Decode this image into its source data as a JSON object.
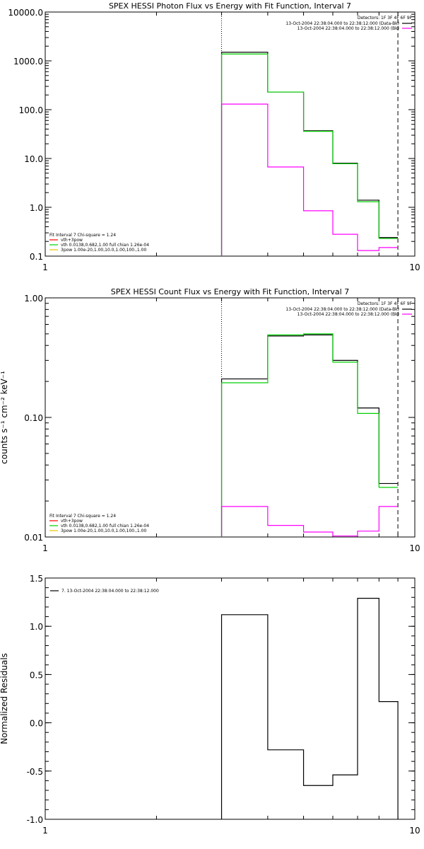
{
  "chart_data": [
    {
      "type": "line",
      "title": "SPEX HESSI Photon Flux vs Energy with Fit Function, Interval 7",
      "xscale": "log",
      "yscale": "log",
      "xlim": [
        1,
        10
      ],
      "ylim": [
        0.1,
        10000
      ],
      "x_ticks": [
        {
          "v": 1,
          "label": "1"
        },
        {
          "v": 10,
          "label": "10"
        }
      ],
      "y_ticks": [
        {
          "v": 0.1,
          "label": "0.1"
        },
        {
          "v": 1,
          "label": "1.0"
        },
        {
          "v": 10,
          "label": "10.0"
        },
        {
          "v": 100,
          "label": "100.0"
        },
        {
          "v": 1000,
          "label": "1000.0"
        },
        {
          "v": 10000,
          "label": "10000.0"
        }
      ],
      "bin_edges": [
        3.0,
        4.0,
        5.0,
        6.0,
        7.0,
        8.0,
        9.0
      ],
      "vlines": [
        {
          "x": 3.0,
          "style": "dotted"
        },
        {
          "x": 9.0,
          "style": "dashed"
        }
      ],
      "series": [
        {
          "color": "#000000",
          "values": [
            1500,
            230,
            37,
            8.0,
            1.4,
            0.24
          ]
        },
        {
          "color": "#00d000",
          "values": [
            1380,
            230,
            36,
            7.8,
            1.3,
            0.23
          ]
        },
        {
          "color": "#ff00ff",
          "values": [
            130,
            6.7,
            0.85,
            0.28,
            0.13,
            0.15
          ]
        }
      ],
      "legend_right": {
        "header": "Detectors: 1F 3F 4F 6F 9F",
        "entries": [
          {
            "text": "13-Oct-2004 22:38:04.000 to 22:38:12.000 (Data-Bk)",
            "color": "#000000"
          },
          {
            "text": "13-Oct-2004 22:38:04.000 to 22:38:12.000 (Bk)",
            "color": "#ff00ff"
          }
        ]
      },
      "legend_left": {
        "header": "Fit Interval 7    Chi-square = 1.24",
        "entries": [
          {
            "text": "vth+3pow",
            "color": "#ff0000"
          },
          {
            "text": "vth 0.0138,0.682,1.00   full chian 1.26e-04",
            "color": "#00d000"
          },
          {
            "text": "3pow 1.00e-20,1.00,10.0,1.00,100.,1.00",
            "color": "#e8c000"
          }
        ]
      }
    },
    {
      "type": "line",
      "title": "SPEX HESSI Count Flux vs Energy with Fit Function, Interval 7",
      "ylabel": "counts s⁻¹ cm⁻² keV⁻¹",
      "xscale": "log",
      "yscale": "log",
      "xlim": [
        1,
        10
      ],
      "ylim": [
        0.01,
        1.0
      ],
      "x_ticks": [
        {
          "v": 1,
          "label": "1"
        },
        {
          "v": 10,
          "label": "10"
        }
      ],
      "y_ticks": [
        {
          "v": 0.01,
          "label": "0.01"
        },
        {
          "v": 0.1,
          "label": "0.10"
        },
        {
          "v": 1,
          "label": "1.00"
        }
      ],
      "bin_edges": [
        3.0,
        4.0,
        5.0,
        6.0,
        7.0,
        8.0,
        9.0
      ],
      "vlines": [
        {
          "x": 3.0,
          "style": "dotted"
        },
        {
          "x": 9.0,
          "style": "dashed"
        }
      ],
      "series": [
        {
          "color": "#000000",
          "values": [
            0.21,
            0.48,
            0.49,
            0.3,
            0.12,
            0.028
          ]
        },
        {
          "color": "#00d000",
          "values": [
            0.195,
            0.49,
            0.5,
            0.29,
            0.108,
            0.026
          ]
        },
        {
          "color": "#ff00ff",
          "values": [
            0.018,
            0.0125,
            0.011,
            0.0102,
            0.0112,
            0.018
          ]
        }
      ],
      "legend_right": {
        "header": "Detectors: 1F 3F 4F 6F 9F",
        "entries": [
          {
            "text": "13-Oct-2004 22:38:04.000 to 22:38:12.000 (Data-Bk)",
            "color": "#000000"
          },
          {
            "text": "13-Oct-2004 22:38:04.000 to 22:38:12.000 (Bk)",
            "color": "#ff00ff"
          }
        ]
      },
      "legend_left": {
        "header": "Fit Interval 7    Chi-square = 1.24",
        "entries": [
          {
            "text": "vth+3pow",
            "color": "#ff0000"
          },
          {
            "text": "vth 0.0138,0.682,1.00   full chian 1.26e-04",
            "color": "#00d000"
          },
          {
            "text": "3pow 1.00e-20,1.00,10.0,1.00,100.,1.00",
            "color": "#e8c000"
          }
        ]
      }
    },
    {
      "type": "line",
      "ylabel": "Normalized Residuals",
      "xscale": "log",
      "yscale": "linear",
      "xlim": [
        1,
        10
      ],
      "ylim": [
        -1.0,
        1.5
      ],
      "x_ticks": [
        {
          "v": 1,
          "label": "1"
        },
        {
          "v": 10,
          "label": "10"
        }
      ],
      "y_ticks": [
        {
          "v": -1.0,
          "label": "-1.0"
        },
        {
          "v": -0.5,
          "label": "-0.5"
        },
        {
          "v": 0.0,
          "label": "0.0"
        },
        {
          "v": 0.5,
          "label": "0.5"
        },
        {
          "v": 1.0,
          "label": "1.0"
        },
        {
          "v": 1.5,
          "label": "1.5"
        }
      ],
      "bin_edges": [
        3.0,
        4.0,
        5.0,
        6.0,
        7.0,
        8.0,
        9.0
      ],
      "vlines": [],
      "series": [
        {
          "color": "#000000",
          "values": [
            1.12,
            -0.28,
            -0.65,
            -0.54,
            1.29,
            0.22
          ]
        }
      ],
      "legend_left_top": {
        "entries": [
          {
            "text": "7. 13-Oct-2004 22:38:04.000 to 22:38:12.000",
            "color": "#000000"
          }
        ]
      }
    }
  ]
}
